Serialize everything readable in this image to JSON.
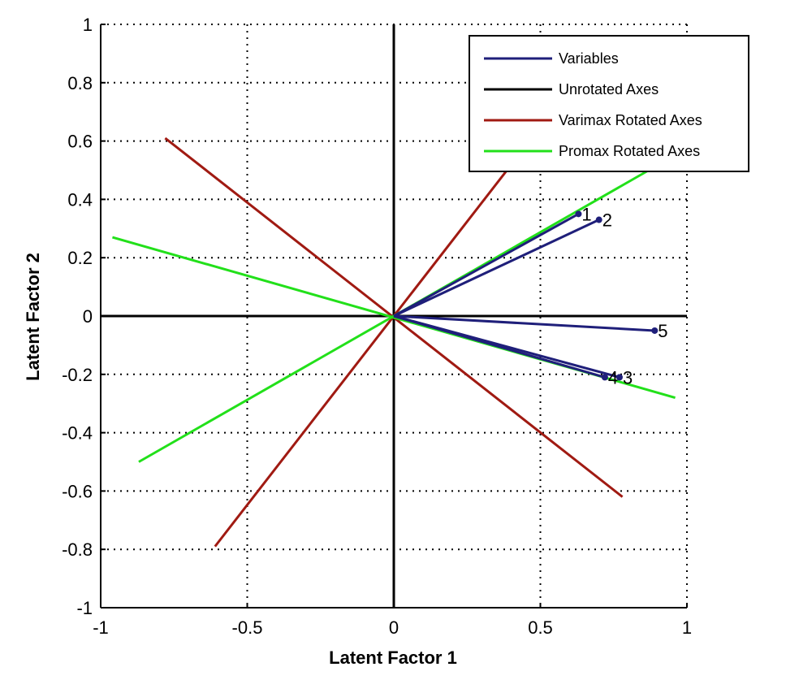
{
  "chart_data": {
    "type": "line",
    "xlabel": "Latent Factor 1",
    "ylabel": "Latent Factor 2",
    "xlim": [
      -1,
      1
    ],
    "ylim": [
      -1,
      1
    ],
    "xticks": [
      "-1",
      "-0.5",
      "0",
      "0.5",
      "1"
    ],
    "yticks": [
      "-1",
      "-0.8",
      "-0.6",
      "-0.4",
      "-0.2",
      "0",
      "0.2",
      "0.4",
      "0.6",
      "0.8",
      "1"
    ],
    "grid": true,
    "grid_style": "dotted",
    "legend_position": "top-right",
    "colors": {
      "variables": "#1f1f7a",
      "unrotated": "#000000",
      "varimax": "#a01a12",
      "promax": "#22e01a"
    },
    "series": [
      {
        "name": "Variables",
        "color": "#1f1f7a",
        "vectors": [
          {
            "label": "1",
            "x": 0.63,
            "y": 0.35
          },
          {
            "label": "2",
            "x": 0.7,
            "y": 0.33
          },
          {
            "label": "5",
            "x": 0.89,
            "y": -0.05
          },
          {
            "label": "4",
            "x": 0.72,
            "y": -0.21
          },
          {
            "label": "3",
            "x": 0.77,
            "y": -0.21
          }
        ]
      },
      {
        "name": "Unrotated Axes",
        "color": "#000000",
        "lines": [
          {
            "x": [
              -1,
              1
            ],
            "y": [
              0,
              0
            ]
          },
          {
            "x": [
              0,
              0
            ],
            "y": [
              -1,
              1
            ]
          }
        ]
      },
      {
        "name": "Varimax Rotated Axes",
        "color": "#a01a12",
        "lines": [
          {
            "x": [
              -0.78,
              0.78
            ],
            "y": [
              0.61,
              -0.62
            ]
          },
          {
            "x": [
              -0.61,
              0.61
            ],
            "y": [
              -0.79,
              0.79
            ]
          }
        ]
      },
      {
        "name": "Promax Rotated Axes",
        "color": "#22e01a",
        "lines": [
          {
            "x": [
              -0.96,
              0.96
            ],
            "y": [
              0.27,
              -0.28
            ]
          },
          {
            "x": [
              -0.87,
              0.87
            ],
            "y": [
              -0.5,
              0.5
            ]
          }
        ]
      }
    ],
    "legend": [
      "Variables",
      "Unrotated Axes",
      "Varimax Rotated Axes",
      "Promax Rotated Axes"
    ]
  }
}
